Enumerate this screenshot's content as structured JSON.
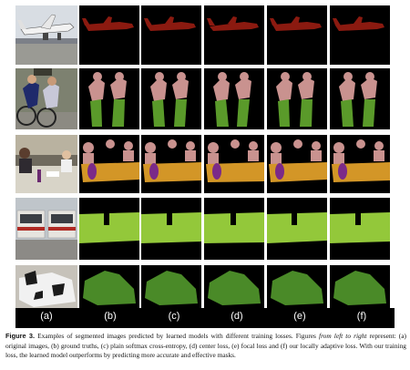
{
  "figure": {
    "column_labels": [
      "(a)",
      "(b)",
      "(c)",
      "(d)",
      "(e)",
      "(f)"
    ],
    "rows": [
      {
        "name": "airplane"
      },
      {
        "name": "cyclists"
      },
      {
        "name": "dining-table"
      },
      {
        "name": "train"
      },
      {
        "name": "cow"
      }
    ],
    "colors": {
      "background": "#000000",
      "airplane": "#8b1a10",
      "person": "#c9928f",
      "bicycle": "#5a9a2a",
      "bottle": "#7b2a88",
      "table": "#d39627",
      "train": "#93c83a",
      "cow": "#4a8a28"
    }
  },
  "caption": {
    "label": "Figure 3.",
    "text_1": "Examples of segmented images predicted by learned models with different training losses. Figures ",
    "italic": "from left to right",
    "text_2": " represent: (a) original images, (b) ground truths, (c) plain softmax cross-entropy, (d) center loss, (e) focal loss and (f) our locally adaptive loss. With our training loss, the learned model outperforms by predicting more accurate and effective masks."
  }
}
